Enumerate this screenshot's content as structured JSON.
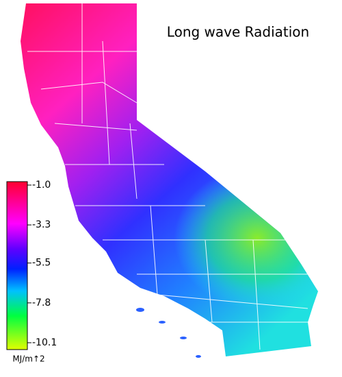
{
  "title": "Long wave Radiation",
  "colorbar": {
    "ticks": [
      {
        "value": -1,
        "label": "-1.0"
      },
      -3.3,
      -5.5,
      -7.8,
      -10.1
    ],
    "unit": "MJ/m↑2"
  }
}
